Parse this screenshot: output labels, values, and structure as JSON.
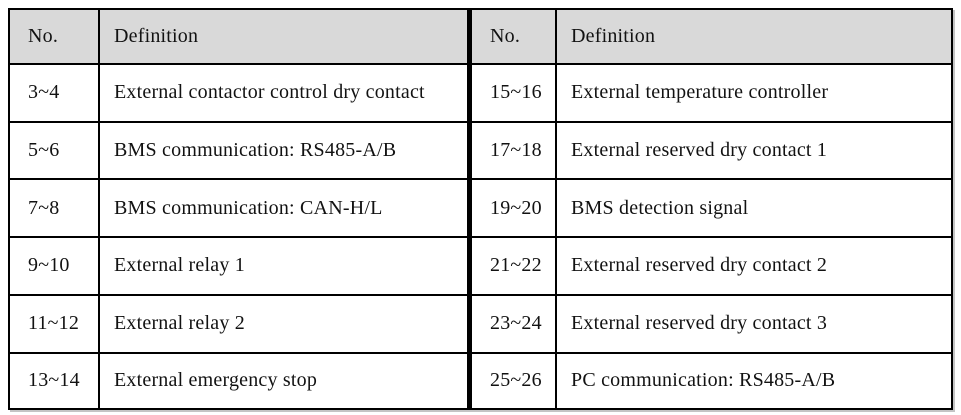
{
  "colors": {
    "header_bg": "#d9d9d9",
    "border": "#000000",
    "text": "#121212",
    "page_bg": "#ffffff"
  },
  "table_left": {
    "headers": {
      "no": "No.",
      "definition": "Definition"
    },
    "rows": [
      {
        "no": "3~4",
        "definition": "External contactor control dry contact"
      },
      {
        "no": "5~6",
        "definition": "BMS communication: RS485-A/B"
      },
      {
        "no": "7~8",
        "definition": "BMS communication: CAN-H/L"
      },
      {
        "no": "9~10",
        "definition": "External relay 1"
      },
      {
        "no": "11~12",
        "definition": "External relay 2"
      },
      {
        "no": "13~14",
        "definition": "External emergency stop"
      }
    ]
  },
  "table_right": {
    "headers": {
      "no": "No.",
      "definition": "Definition"
    },
    "rows": [
      {
        "no": "15~16",
        "definition": "External temperature controller"
      },
      {
        "no": "17~18",
        "definition": "External reserved dry contact 1"
      },
      {
        "no": "19~20",
        "definition": "BMS detection signal"
      },
      {
        "no": "21~22",
        "definition": "External reserved dry contact 2"
      },
      {
        "no": "23~24",
        "definition": "External reserved dry contact 3"
      },
      {
        "no": "25~26",
        "definition": "PC communication: RS485-A/B"
      }
    ]
  }
}
